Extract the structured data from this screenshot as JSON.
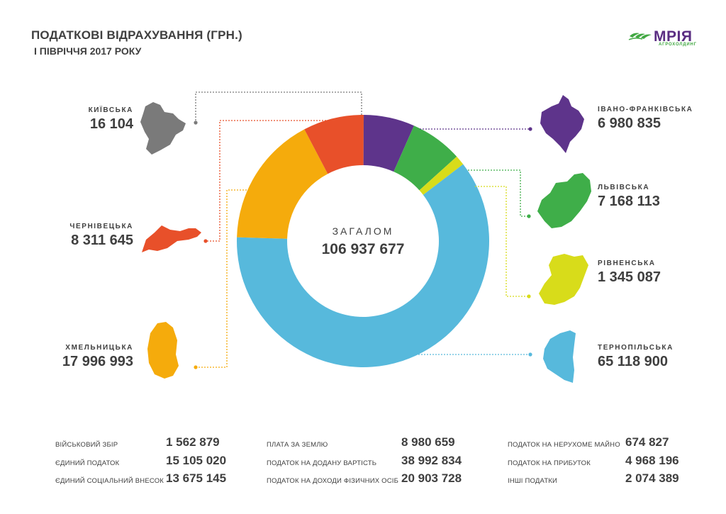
{
  "header": {
    "title": "ПОДАТКОВІ ВІДРАХУВАННЯ (ГРН.)",
    "subtitle": "I ПІВРІЧЧЯ 2017 РОКУ"
  },
  "logo": {
    "word": "МРІЯ",
    "sub": "АГРОХОЛДИНГ",
    "colors": {
      "word": "#5a2d82",
      "mark": "#41a842"
    }
  },
  "chart_data": {
    "type": "donut",
    "center_label": "ЗАГАЛОМ",
    "total": "106 937 677",
    "series": [
      {
        "name": "КИЇВСЬКА",
        "value": 16104,
        "display": "16 104",
        "color": "#7a7a7a"
      },
      {
        "name": "ІВАНО-ФРАНКІВСЬКА",
        "value": 6980835,
        "display": "6 980 835",
        "color": "#5e348b"
      },
      {
        "name": "ЛЬВІВСЬКА",
        "value": 7168113,
        "display": "7 168 113",
        "color": "#3fae49"
      },
      {
        "name": "РІВНЕНСЬКА",
        "value": 1345087,
        "display": "1 345 087",
        "color": "#d8dc1a"
      },
      {
        "name": "ТЕРНОПІЛЬСЬКА",
        "value": 65118900,
        "display": "65 118 900",
        "color": "#57b9dc"
      },
      {
        "name": "ХМЕЛЬНИЦЬКА",
        "value": 17996993,
        "display": "17 996 993",
        "color": "#f5ab0c"
      },
      {
        "name": "ЧЕРНІВЕЦЬКА",
        "value": 8311645,
        "display": "8 311 645",
        "color": "#e8502a"
      }
    ]
  },
  "taxes": {
    "col1": [
      {
        "label": "ВІЙСЬКОВИЙ ЗБІР",
        "value": "1 562 879"
      },
      {
        "label": "ЄДИНИЙ ПОДАТОК",
        "value": "15 105 020"
      },
      {
        "label": "ЄДИНИЙ СОЦІАЛЬНИЙ ВНЕСОК",
        "value": "13 675 145"
      }
    ],
    "col2": [
      {
        "label": "ПЛАТА ЗА ЗЕМЛЮ",
        "value": "8 980 659"
      },
      {
        "label": "ПОДАТОК НА ДОДАНУ ВАРТІСТЬ",
        "value": "38 992 834"
      },
      {
        "label": "ПОДАТОК НА ДОХОДИ ФІЗИЧНИХ ОСІБ",
        "value": "20 903 728"
      }
    ],
    "col3": [
      {
        "label": "ПОДАТОК НА НЕРУХОМЕ МАЙНО",
        "value": "674 827"
      },
      {
        "label": "ПОДАТОК НА ПРИБУТОК",
        "value": "4 968 196"
      },
      {
        "label": "ІНШІ ПОДАТКИ",
        "value": "2 074 389"
      }
    ]
  }
}
